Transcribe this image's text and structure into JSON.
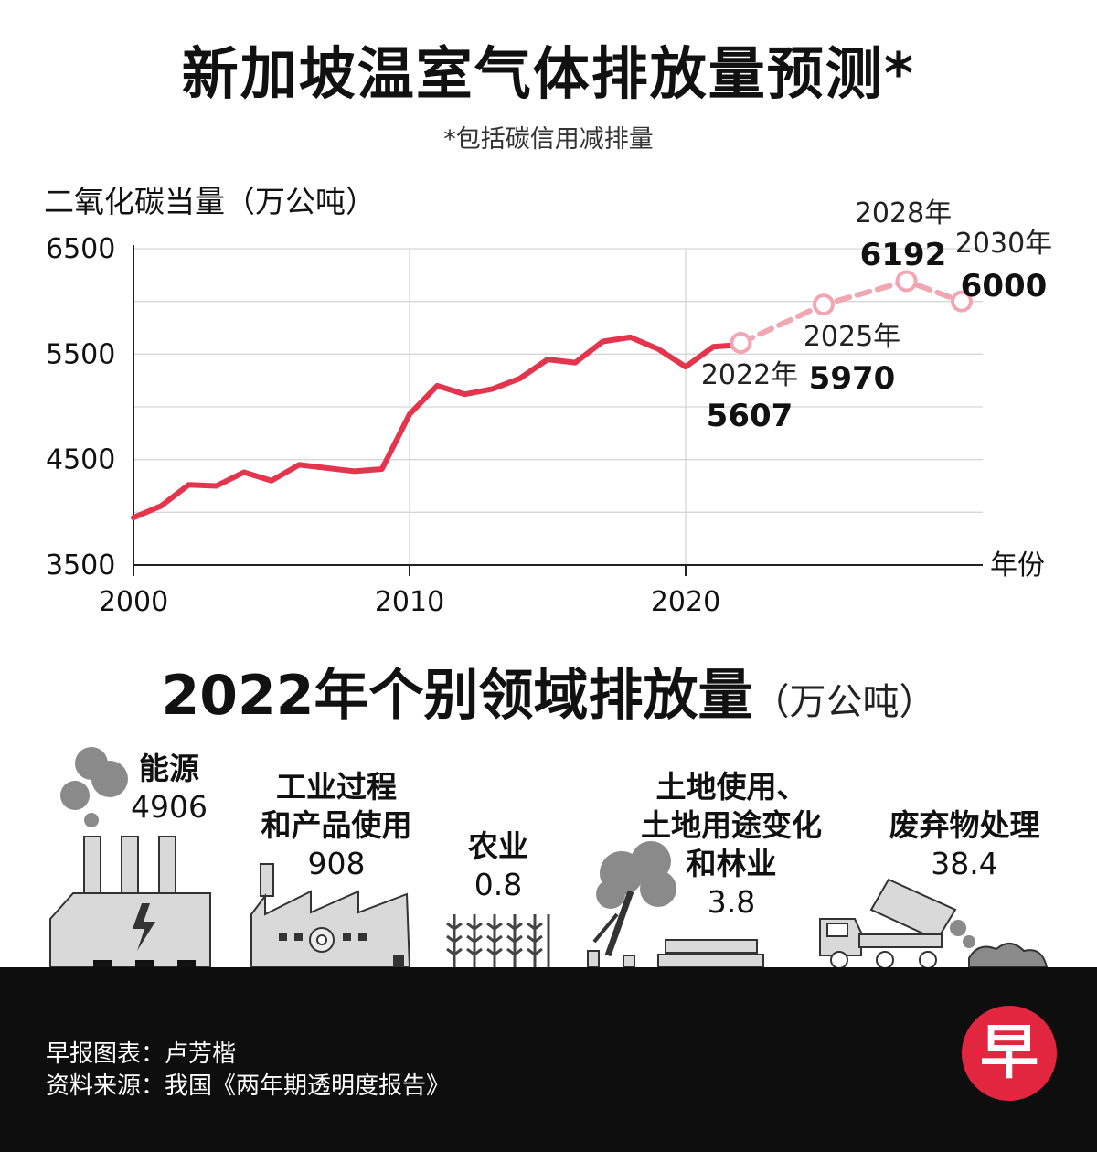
{
  "header": {
    "title": "新加坡温室气体排放量预测*",
    "subtitle": "*包括碳信用减排量"
  },
  "chart_data": {
    "type": "line",
    "title": "新加坡温室气体排放量预测*",
    "subtitle": "*包括碳信用减排量",
    "ylabel": "二氧化碳当量（万公吨）",
    "xlabel": "年份",
    "ylim": [
      3500,
      6500
    ],
    "yticks": [
      "6500",
      "5500",
      "4500",
      "3500"
    ],
    "xlim": [
      2000,
      2031
    ],
    "xticks": [
      "2000",
      "2010",
      "2020"
    ],
    "grid": true,
    "series": [
      {
        "type": "historical",
        "color": "#e3354e",
        "x": [
          2000,
          2001,
          2002,
          2003,
          2004,
          2005,
          2006,
          2007,
          2008,
          2009,
          2010,
          2011,
          2012,
          2013,
          2014,
          2015,
          2016,
          2017,
          2018,
          2019,
          2020,
          2021,
          2022
        ],
        "y": [
          3950,
          4060,
          4260,
          4250,
          4380,
          4300,
          4450,
          4420,
          4390,
          4410,
          4930,
          5200,
          5120,
          5170,
          5270,
          5450,
          5420,
          5620,
          5660,
          5550,
          5380,
          5570,
          5590
        ]
      },
      {
        "type": "projection",
        "color": "#f1a6b3",
        "x": [
          2022,
          2025,
          2028,
          2030
        ],
        "y": [
          5607,
          5970,
          6192,
          6000
        ]
      }
    ],
    "annotations": [
      {
        "year_label": "2022年",
        "value": "5607"
      },
      {
        "year_label": "2025年",
        "value": "5970"
      },
      {
        "year_label": "2028年",
        "value": "6192"
      },
      {
        "year_label": "2030年",
        "value": "6000"
      }
    ]
  },
  "sectors": {
    "title": "2022年个别领域排放量",
    "unit": "（万公吨）",
    "items": [
      {
        "name": "能源",
        "value": "4906"
      },
      {
        "name": "工业过程\n和产品使用",
        "value": "908"
      },
      {
        "name": "农业",
        "value": "0.8"
      },
      {
        "name": "土地使用、\n土地用途变化\n和林业",
        "value": "3.8"
      },
      {
        "name": "废弃物处理",
        "value": "38.4"
      }
    ]
  },
  "footer": {
    "credit_line1": "早报图表：卢芳楷",
    "credit_line2": "资料来源：我国《两年期透明度报告》",
    "logo_text": "早"
  }
}
